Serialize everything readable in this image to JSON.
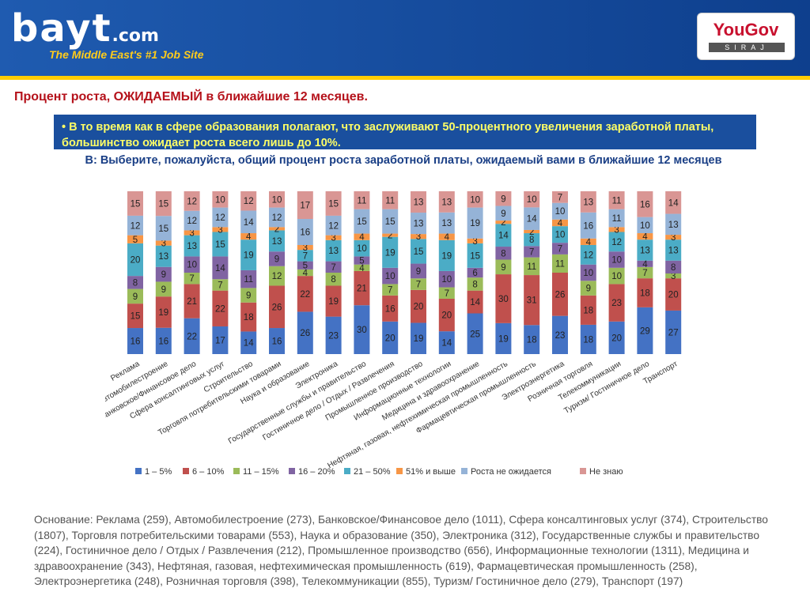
{
  "header": {
    "logo_text": "bayt",
    "logo_suffix": ".com",
    "tagline": "The Middle East's #1 Job Site",
    "partner_logo_name": "YouGov",
    "partner_logo_sub": "SIRAJ"
  },
  "title": "Процент роста, ОЖИДАЕМЫЙ в ближайшие 12 месяцев.",
  "bullet": "• В то время как в сфере образования полагают, что заслуживают 50-процентного увеличения заработной платы, большинство ожидает роста всего лишь до 10%.",
  "question": "В: Выберите, пожалуйста, общий процент роста заработной платы, ожидаемый вами в ближайшие 12 месяцев",
  "footnote": "Основание: Реклама (259), Автомобилестроение (273), Банковское/Финансовое дело (1011), Сфера консалтинговых услуг (374), Строительство (1807), Торговля потребительскими товарами (553), Наука и образование (350), Электроника (312), Государственные службы и правительство (224), Гостиничное дело / Отдых / Развлечения (212), Промышленное производство (656), Информационные технологии (1311), Медицина и здравоохранение (343), Нефтяная, газовая, нефтехимическая промышленность (619), Фармацевтическая промышленность (258), Электроэнергетика (248), Розничная торговля (398), Телекоммуникации (855), Туризм/ Гостиничное дело (279), Транспорт (197)",
  "chart_data": {
    "type": "bar",
    "stacked": true,
    "normalized": true,
    "categories": [
      "Реклама",
      "Автомобилестроение",
      "Банковское/Финансовое дело",
      "Сфера консалтинговых услуг",
      "Строительство",
      "Торговля потребительскими товарами",
      "Наука и образование",
      "Электроника",
      "Государственные службы и правительство",
      "Гостиничное дело / Отдых / Развлечения",
      "Промышленное производство",
      "Информационные технологии",
      "Медицина и здравоохранение",
      "Нефтяная, газовая, нефтехимическая промышленность",
      "Фармацевтическая промышленность",
      "Электроэнергетика",
      "Розничная торговля",
      "Телекоммуникации",
      "Туризм/ Гостиничное дело",
      "Транспорт"
    ],
    "series": [
      {
        "name": "1 – 5%",
        "color": "#4472c4",
        "values": [
          16,
          16,
          22,
          17,
          14,
          16,
          26,
          23,
          30,
          20,
          19,
          14,
          25,
          19,
          18,
          23,
          18,
          20,
          29,
          27
        ]
      },
      {
        "name": "6 – 10%",
        "color": "#c0504d",
        "values": [
          15,
          19,
          21,
          22,
          18,
          26,
          22,
          19,
          21,
          16,
          20,
          20,
          14,
          30,
          31,
          26,
          18,
          23,
          18,
          20
        ]
      },
      {
        "name": "11 – 15%",
        "color": "#9bbb59",
        "values": [
          9,
          9,
          7,
          7,
          9,
          12,
          4,
          8,
          4,
          7,
          7,
          7,
          8,
          9,
          11,
          11,
          9,
          10,
          7,
          3
        ]
      },
      {
        "name": "16 – 20%",
        "color": "#8064a2",
        "values": [
          8,
          9,
          10,
          14,
          11,
          9,
          5,
          7,
          5,
          10,
          9,
          10,
          6,
          8,
          7,
          7,
          10,
          10,
          4,
          8
        ]
      },
      {
        "name": "21 – 50%",
        "color": "#4bacc6",
        "values": [
          20,
          13,
          13,
          15,
          19,
          13,
          7,
          13,
          10,
          19,
          15,
          19,
          15,
          14,
          8,
          10,
          12,
          12,
          13,
          13
        ]
      },
      {
        "name": "51% и выше",
        "color": "#f79646",
        "values": [
          5,
          3,
          3,
          3,
          4,
          2,
          3,
          3,
          4,
          2,
          3,
          4,
          3,
          2,
          2,
          4,
          4,
          3,
          4,
          3
        ]
      },
      {
        "name": "Роста не ожидается",
        "color": "#95b3d7",
        "values": [
          12,
          15,
          12,
          12,
          14,
          12,
          16,
          12,
          15,
          15,
          13,
          13,
          19,
          9,
          14,
          10,
          16,
          11,
          10,
          13
        ]
      },
      {
        "name": "Не знаю",
        "color": "#d99694",
        "values": [
          15,
          15,
          12,
          10,
          12,
          10,
          17,
          15,
          11,
          11,
          13,
          13,
          10,
          9,
          10,
          7,
          13,
          11,
          16,
          14
        ]
      }
    ],
    "value_labels_extra": [
      "",
      "",
      "",
      "",
      "",
      "",
      "",
      "",
      "",
      "",
      "",
      "",
      "",
      "",
      "",
      "",
      "",
      "",
      "",
      ""
    ],
    "ylim": [
      0,
      100
    ],
    "legend_position": "bottom"
  }
}
